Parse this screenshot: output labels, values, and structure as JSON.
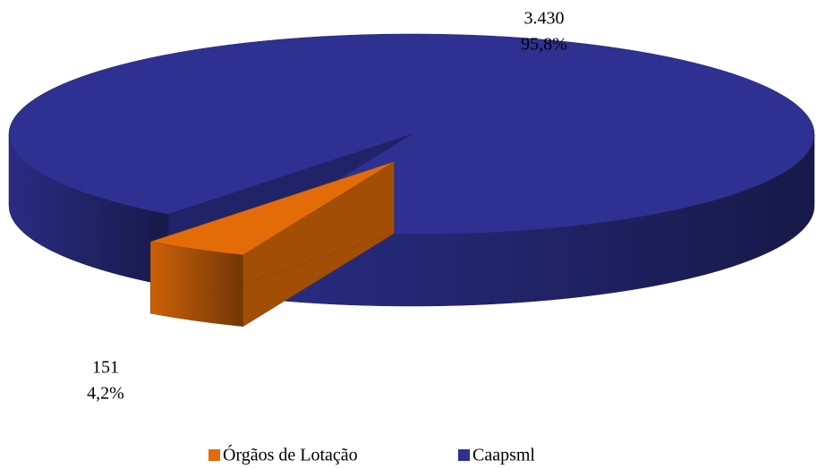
{
  "chart_data": {
    "type": "pie3d",
    "categories": [
      "Órgãos de Lotação",
      "Caapsml"
    ],
    "values": [
      151,
      3430
    ],
    "value_labels": [
      "151",
      "3.430"
    ],
    "percents": [
      4.2,
      95.8
    ],
    "percent_labels": [
      "4,2%",
      "95,8%"
    ],
    "colors": [
      "#e36c09",
      "#2e3192"
    ],
    "legend": "bottom"
  }
}
